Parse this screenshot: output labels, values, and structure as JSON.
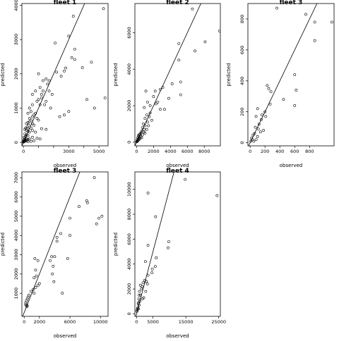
{
  "chart_data": [
    {
      "type": "scatter",
      "title": "fleet 1",
      "xlabel": "observed",
      "ylabel": "predicted",
      "xlim": [
        -100,
        5600
      ],
      "ylim": [
        -100,
        4050
      ],
      "xticks": [
        0,
        1000,
        2000,
        3000,
        4000,
        5000
      ],
      "xtick_labels": [
        "0",
        "",
        "",
        "3000",
        "",
        "5000"
      ],
      "yticks": [
        0,
        1000,
        2000,
        3000,
        4000
      ],
      "ytick_labels": [
        "0",
        "1000",
        "2000",
        "3000",
        "4000"
      ],
      "reference_line": "y = x",
      "points": [
        [
          5300,
          3900
        ],
        [
          3300,
          3680
        ],
        [
          3000,
          3100
        ],
        [
          2100,
          2900
        ],
        [
          3400,
          2720
        ],
        [
          3400,
          2420
        ],
        [
          3200,
          2470
        ],
        [
          3900,
          2180
        ],
        [
          4500,
          2340
        ],
        [
          2200,
          2050
        ],
        [
          2800,
          2170
        ],
        [
          2700,
          2080
        ],
        [
          2500,
          1930
        ],
        [
          1000,
          2000
        ],
        [
          1500,
          1850
        ],
        [
          1300,
          1800
        ],
        [
          1700,
          1500
        ],
        [
          1100,
          1600
        ],
        [
          800,
          1500
        ],
        [
          600,
          1400
        ],
        [
          1200,
          1300
        ],
        [
          1500,
          1200
        ],
        [
          900,
          1200
        ],
        [
          1000,
          1250
        ],
        [
          1100,
          1100
        ],
        [
          1400,
          1100
        ],
        [
          1800,
          1000
        ],
        [
          4700,
          1000
        ],
        [
          4200,
          1250
        ],
        [
          5400,
          1300
        ],
        [
          3000,
          900
        ],
        [
          2700,
          800
        ],
        [
          2400,
          750
        ],
        [
          600,
          1100
        ],
        [
          400,
          1000
        ],
        [
          500,
          900
        ],
        [
          300,
          850
        ],
        [
          800,
          850
        ],
        [
          700,
          800
        ],
        [
          900,
          700
        ],
        [
          1000,
          650
        ],
        [
          500,
          650
        ],
        [
          400,
          600
        ],
        [
          300,
          580
        ],
        [
          200,
          550
        ],
        [
          600,
          550
        ],
        [
          700,
          500
        ],
        [
          350,
          500
        ],
        [
          250,
          450
        ],
        [
          150,
          420
        ],
        [
          500,
          420
        ],
        [
          100,
          380
        ],
        [
          200,
          350
        ],
        [
          300,
          320
        ],
        [
          400,
          300
        ],
        [
          600,
          350
        ],
        [
          800,
          300
        ],
        [
          1200,
          400
        ],
        [
          1500,
          380
        ],
        [
          100,
          250
        ],
        [
          200,
          220
        ],
        [
          300,
          200
        ],
        [
          150,
          180
        ],
        [
          50,
          150
        ],
        [
          100,
          120
        ],
        [
          200,
          100
        ],
        [
          300,
          90
        ],
        [
          50,
          80
        ],
        [
          100,
          60
        ],
        [
          20,
          50
        ],
        [
          80,
          30
        ],
        [
          150,
          40
        ],
        [
          250,
          60
        ],
        [
          400,
          100
        ],
        [
          600,
          150
        ],
        [
          900,
          120
        ],
        [
          1100,
          100
        ],
        [
          700,
          50
        ],
        [
          500,
          30
        ],
        [
          300,
          20
        ],
        [
          10,
          10
        ],
        [
          30,
          20
        ],
        [
          60,
          25
        ],
        [
          1300,
          1500
        ],
        [
          1600,
          1700
        ],
        [
          1900,
          1400
        ],
        [
          1700,
          1800
        ],
        [
          1200,
          1400
        ],
        [
          400,
          700
        ],
        [
          600,
          750
        ],
        [
          300,
          400
        ]
      ]
    },
    {
      "type": "scatter",
      "title": "fleet 2",
      "xlabel": "observed",
      "ylabel": "predicted",
      "xlim": [
        -200,
        9900
      ],
      "ylim": [
        -200,
        7600
      ],
      "xticks": [
        0,
        2000,
        4000,
        6000,
        8000
      ],
      "xtick_labels": [
        "0",
        "2000",
        "4000",
        "6000",
        "8000"
      ],
      "yticks": [
        0,
        2000,
        4000,
        6000
      ],
      "ytick_labels": [
        "0",
        "2000",
        "4000",
        "6000"
      ],
      "reference_line": "y = x",
      "points": [
        [
          6600,
          7300
        ],
        [
          9800,
          6100
        ],
        [
          8100,
          5500
        ],
        [
          5000,
          5400
        ],
        [
          6900,
          5000
        ],
        [
          5000,
          4500
        ],
        [
          5200,
          3300
        ],
        [
          5200,
          2600
        ],
        [
          4200,
          3200
        ],
        [
          3100,
          3000
        ],
        [
          2800,
          2900
        ],
        [
          2200,
          2800
        ],
        [
          2000,
          2500
        ],
        [
          1100,
          2800
        ],
        [
          3800,
          2400
        ],
        [
          2300,
          2100
        ],
        [
          1600,
          2000
        ],
        [
          1300,
          2200
        ],
        [
          900,
          1900
        ],
        [
          2800,
          1800
        ],
        [
          3300,
          1800
        ],
        [
          1200,
          1500
        ],
        [
          1500,
          1400
        ],
        [
          1800,
          1200
        ],
        [
          1000,
          1300
        ],
        [
          1300,
          1100
        ],
        [
          800,
          1000
        ],
        [
          1000,
          900
        ],
        [
          700,
          800
        ],
        [
          900,
          700
        ],
        [
          600,
          600
        ],
        [
          500,
          500
        ],
        [
          400,
          450
        ],
        [
          300,
          400
        ],
        [
          200,
          350
        ],
        [
          300,
          300
        ],
        [
          150,
          250
        ],
        [
          250,
          200
        ],
        [
          100,
          150
        ],
        [
          200,
          120
        ],
        [
          80,
          80
        ],
        [
          50,
          50
        ],
        [
          120,
          60
        ],
        [
          300,
          150
        ],
        [
          500,
          300
        ],
        [
          700,
          400
        ],
        [
          1000,
          500
        ],
        [
          400,
          200
        ],
        [
          600,
          250
        ],
        [
          20,
          20
        ],
        [
          1400,
          900
        ],
        [
          1200,
          700
        ],
        [
          850,
          550
        ],
        [
          1600,
          1600
        ],
        [
          2500,
          2200
        ]
      ]
    },
    {
      "type": "scatter",
      "title": "fleet 3",
      "xlabel": "observed",
      "ylabel": "predicted",
      "xlim": [
        -30,
        1130
      ],
      "ylim": [
        -20,
        900
      ],
      "xticks": [
        0,
        200,
        400,
        600,
        800
      ],
      "xtick_labels": [
        "0",
        "200",
        "400",
        "600",
        "800"
      ],
      "yticks": [
        0,
        200,
        400,
        600,
        800
      ],
      "ytick_labels": [
        "0",
        "200",
        "400",
        "600",
        "800"
      ],
      "reference_line": "y = x",
      "points": [
        [
          360,
          870
        ],
        [
          750,
          830
        ],
        [
          1100,
          780
        ],
        [
          870,
          780
        ],
        [
          870,
          660
        ],
        [
          600,
          440
        ],
        [
          230,
          370
        ],
        [
          250,
          350
        ],
        [
          280,
          330
        ],
        [
          620,
          340
        ],
        [
          450,
          280
        ],
        [
          600,
          240
        ],
        [
          270,
          250
        ],
        [
          100,
          220
        ],
        [
          200,
          200
        ],
        [
          160,
          180
        ],
        [
          80,
          170
        ],
        [
          210,
          170
        ],
        [
          150,
          150
        ],
        [
          120,
          120
        ],
        [
          70,
          100
        ],
        [
          110,
          90
        ],
        [
          180,
          80
        ],
        [
          140,
          70
        ],
        [
          60,
          60
        ],
        [
          40,
          50
        ],
        [
          100,
          40
        ],
        [
          20,
          30
        ],
        [
          30,
          20
        ],
        [
          10,
          10
        ],
        [
          50,
          10
        ],
        [
          80,
          20
        ]
      ]
    },
    {
      "type": "scatter",
      "title": "fleet 3",
      "xlabel": "observed",
      "ylabel": "predicted",
      "xlim": [
        -300,
        11000
      ],
      "ylim": [
        -200,
        7300
      ],
      "xticks": [
        0,
        2000,
        6000,
        10000
      ],
      "xtick_labels": [
        "0",
        "2000",
        "6000",
        "10000"
      ],
      "yticks": [
        1000,
        2000,
        3000,
        4000,
        5000,
        6000,
        7000
      ],
      "ytick_labels": [
        "1000",
        "2000",
        "3000",
        "4000",
        "5000",
        "6000",
        "7000"
      ],
      "reference_line": "y = x",
      "points": [
        [
          9200,
          7000
        ],
        [
          8200,
          5800
        ],
        [
          8300,
          5700
        ],
        [
          7200,
          5500
        ],
        [
          10200,
          5000
        ],
        [
          9800,
          4900
        ],
        [
          9500,
          4600
        ],
        [
          6000,
          4900
        ],
        [
          4800,
          4100
        ],
        [
          6000,
          4000
        ],
        [
          4300,
          3900
        ],
        [
          4300,
          3700
        ],
        [
          5700,
          2800
        ],
        [
          3600,
          2900
        ],
        [
          4000,
          2900
        ],
        [
          3400,
          2700
        ],
        [
          1400,
          2800
        ],
        [
          1800,
          2700
        ],
        [
          3800,
          2400
        ],
        [
          3700,
          2000
        ],
        [
          1500,
          2200
        ],
        [
          1600,
          1900
        ],
        [
          1300,
          1800
        ],
        [
          3900,
          1600
        ],
        [
          2000,
          1500
        ],
        [
          1800,
          1400
        ],
        [
          1500,
          1300
        ],
        [
          1200,
          1200
        ],
        [
          1300,
          1000
        ],
        [
          900,
          1100
        ],
        [
          5000,
          1000
        ],
        [
          600,
          900
        ],
        [
          500,
          800
        ],
        [
          400,
          700
        ],
        [
          300,
          600
        ],
        [
          200,
          500
        ],
        [
          300,
          400
        ],
        [
          200,
          400
        ],
        [
          400,
          350
        ],
        [
          350,
          300
        ]
      ]
    },
    {
      "type": "scatter",
      "title": "fleet 4",
      "xlabel": "observed",
      "ylabel": "predicted",
      "xlim": [
        -500,
        25500
      ],
      "ylim": [
        -200,
        11400
      ],
      "xticks": [
        0,
        5000,
        15000,
        25000
      ],
      "xtick_labels": [
        "0",
        "5000",
        "15000",
        "25000"
      ],
      "yticks": [
        0,
        2000,
        4000,
        6000,
        8000,
        10000
      ],
      "ytick_labels": [
        "0",
        "2000",
        "4000",
        "6000",
        "8000",
        "10000"
      ],
      "reference_line": "y = x",
      "points": [
        [
          14800,
          10800
        ],
        [
          24500,
          9500
        ],
        [
          3500,
          9700
        ],
        [
          5800,
          7800
        ],
        [
          9800,
          5800
        ],
        [
          9600,
          5300
        ],
        [
          3500,
          5500
        ],
        [
          6000,
          4500
        ],
        [
          5700,
          3800
        ],
        [
          4800,
          3600
        ],
        [
          4700,
          3300
        ],
        [
          3500,
          3100
        ],
        [
          2700,
          4200
        ],
        [
          3000,
          2600
        ],
        [
          3300,
          2400
        ],
        [
          2500,
          2700
        ],
        [
          2000,
          2500
        ],
        [
          1700,
          2200
        ],
        [
          1200,
          2300
        ],
        [
          1500,
          2000
        ],
        [
          900,
          1800
        ],
        [
          1200,
          1500
        ],
        [
          800,
          1500
        ],
        [
          700,
          1200
        ],
        [
          1800,
          1200
        ],
        [
          1000,
          1000
        ],
        [
          600,
          900
        ],
        [
          500,
          800
        ],
        [
          800,
          700
        ],
        [
          400,
          500
        ],
        [
          300,
          400
        ],
        [
          600,
          400
        ],
        [
          200,
          300
        ],
        [
          100,
          200
        ],
        [
          2800,
          1800
        ],
        [
          2200,
          1300
        ]
      ]
    }
  ]
}
